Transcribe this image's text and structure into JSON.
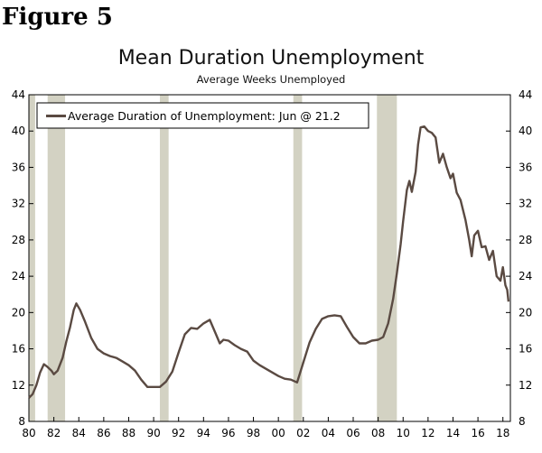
{
  "figure_label": "Figure 5",
  "chart_data": {
    "type": "line",
    "title": "Mean Duration Unemployment",
    "subtitle": "Average Weeks Unemployed",
    "xlabel": "",
    "ylabel": "",
    "xlim": [
      1980.0,
      2018.6
    ],
    "ylim": [
      8,
      44
    ],
    "y_ticks": [
      8,
      12,
      16,
      20,
      24,
      28,
      32,
      36,
      40,
      44
    ],
    "x_ticks": [
      1980,
      1982,
      1984,
      1986,
      1988,
      1990,
      1992,
      1994,
      1996,
      1998,
      2000,
      2002,
      2004,
      2006,
      2008,
      2010,
      2012,
      2014,
      2016,
      2018
    ],
    "x_tick_labels": [
      "80",
      "82",
      "84",
      "86",
      "88",
      "90",
      "92",
      "94",
      "96",
      "98",
      "00",
      "02",
      "04",
      "06",
      "08",
      "10",
      "12",
      "14",
      "16",
      "18"
    ],
    "grid": false,
    "legend_position": "top-left",
    "line_color": "#5a4a42",
    "recession_color": "#d3d2c3",
    "recessions": [
      [
        1980.0,
        1980.5
      ],
      [
        1981.5,
        1982.9
      ],
      [
        1990.5,
        1991.2
      ],
      [
        2001.2,
        2001.9
      ],
      [
        2007.9,
        2009.5
      ]
    ],
    "series": [
      {
        "name": "Average Duration of Unemployment: Jun @ 21.2",
        "points": [
          [
            1980.0,
            10.6
          ],
          [
            1980.3,
            11.0
          ],
          [
            1980.6,
            12.0
          ],
          [
            1980.9,
            13.4
          ],
          [
            1981.2,
            14.3
          ],
          [
            1981.5,
            14.0
          ],
          [
            1981.8,
            13.6
          ],
          [
            1982.0,
            13.2
          ],
          [
            1982.3,
            13.6
          ],
          [
            1982.7,
            15.0
          ],
          [
            1983.0,
            16.8
          ],
          [
            1983.3,
            18.4
          ],
          [
            1983.6,
            20.3
          ],
          [
            1983.8,
            21.0
          ],
          [
            1984.1,
            20.3
          ],
          [
            1984.5,
            19.0
          ],
          [
            1985.0,
            17.2
          ],
          [
            1985.5,
            16.0
          ],
          [
            1986.0,
            15.5
          ],
          [
            1986.5,
            15.2
          ],
          [
            1987.0,
            15.0
          ],
          [
            1987.5,
            14.6
          ],
          [
            1988.0,
            14.2
          ],
          [
            1988.5,
            13.6
          ],
          [
            1989.0,
            12.6
          ],
          [
            1989.5,
            11.8
          ],
          [
            1990.0,
            11.8
          ],
          [
            1990.5,
            11.8
          ],
          [
            1991.0,
            12.4
          ],
          [
            1991.5,
            13.5
          ],
          [
            1992.0,
            15.6
          ],
          [
            1992.5,
            17.6
          ],
          [
            1993.0,
            18.3
          ],
          [
            1993.5,
            18.2
          ],
          [
            1994.0,
            18.8
          ],
          [
            1994.5,
            19.2
          ],
          [
            1995.0,
            17.6
          ],
          [
            1995.3,
            16.6
          ],
          [
            1995.6,
            17.0
          ],
          [
            1996.0,
            16.9
          ],
          [
            1996.5,
            16.4
          ],
          [
            1997.0,
            16.0
          ],
          [
            1997.5,
            15.7
          ],
          [
            1998.0,
            14.7
          ],
          [
            1998.5,
            14.2
          ],
          [
            1999.0,
            13.8
          ],
          [
            1999.5,
            13.4
          ],
          [
            2000.0,
            13.0
          ],
          [
            2000.5,
            12.7
          ],
          [
            2001.0,
            12.6
          ],
          [
            2001.5,
            12.3
          ],
          [
            2002.0,
            14.5
          ],
          [
            2002.5,
            16.7
          ],
          [
            2003.0,
            18.2
          ],
          [
            2003.5,
            19.3
          ],
          [
            2004.0,
            19.6
          ],
          [
            2004.5,
            19.7
          ],
          [
            2005.0,
            19.6
          ],
          [
            2005.5,
            18.4
          ],
          [
            2006.0,
            17.3
          ],
          [
            2006.5,
            16.6
          ],
          [
            2007.0,
            16.6
          ],
          [
            2007.5,
            16.9
          ],
          [
            2008.0,
            17.0
          ],
          [
            2008.4,
            17.3
          ],
          [
            2008.8,
            18.8
          ],
          [
            2009.2,
            21.5
          ],
          [
            2009.5,
            24.3
          ],
          [
            2009.8,
            27.5
          ],
          [
            2010.0,
            30.0
          ],
          [
            2010.3,
            33.5
          ],
          [
            2010.5,
            34.5
          ],
          [
            2010.7,
            33.3
          ],
          [
            2011.0,
            35.5
          ],
          [
            2011.2,
            38.5
          ],
          [
            2011.4,
            40.4
          ],
          [
            2011.7,
            40.5
          ],
          [
            2012.0,
            40.0
          ],
          [
            2012.3,
            39.8
          ],
          [
            2012.6,
            39.3
          ],
          [
            2012.9,
            36.5
          ],
          [
            2013.2,
            37.5
          ],
          [
            2013.5,
            36.0
          ],
          [
            2013.8,
            34.8
          ],
          [
            2014.0,
            35.3
          ],
          [
            2014.3,
            33.2
          ],
          [
            2014.6,
            32.4
          ],
          [
            2015.0,
            30.2
          ],
          [
            2015.3,
            28.0
          ],
          [
            2015.5,
            26.2
          ],
          [
            2015.7,
            28.5
          ],
          [
            2016.0,
            29.0
          ],
          [
            2016.3,
            27.2
          ],
          [
            2016.6,
            27.3
          ],
          [
            2016.9,
            25.8
          ],
          [
            2017.2,
            26.8
          ],
          [
            2017.5,
            24.0
          ],
          [
            2017.8,
            23.5
          ],
          [
            2018.0,
            25.0
          ],
          [
            2018.2,
            23.0
          ],
          [
            2018.35,
            22.5
          ],
          [
            2018.45,
            21.2
          ]
        ]
      }
    ]
  }
}
